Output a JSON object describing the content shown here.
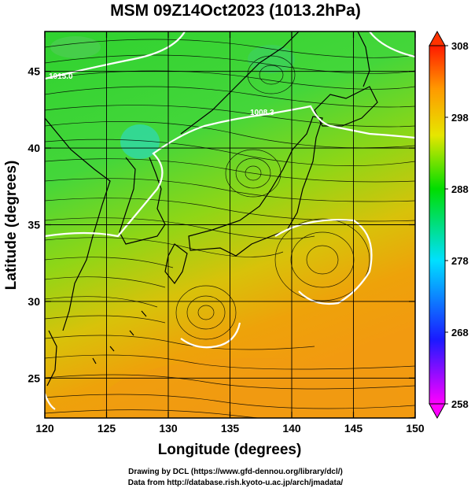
{
  "title": "MSM 09Z14Oct2023 (1013.2hPa)",
  "map": {
    "x_label": "Longitude (degrees)",
    "y_label": "Latitude  (degrees)",
    "lon_range": [
      120,
      150
    ],
    "lat_range": [
      22.4,
      47.6
    ],
    "lon_ticks": [
      "120",
      "125",
      "130",
      "135",
      "140",
      "145",
      "150"
    ],
    "lat_ticks": [
      "25",
      "30",
      "35",
      "40",
      "45"
    ],
    "contour_labels": [
      "1015.0",
      "1008.3"
    ],
    "grid": true,
    "field": "temperature with surface wind streamlines and pressure contours"
  },
  "colorbar": {
    "ticks": [
      "308",
      "298",
      "288",
      "278",
      "268",
      "258"
    ],
    "range": [
      258,
      308
    ],
    "colors": [
      "#ff00ff",
      "#0000ff",
      "#00e0ff",
      "#00dd00",
      "#e6e600",
      "#ff9900",
      "#ff0000"
    ]
  },
  "credits": {
    "line1": "Drawing by DCL (https://www.gfd-dennou.org/library/dcl/)",
    "line2": "Data from http://database.rish.kyoto-u.ac.jp/arch/jmadata/"
  }
}
